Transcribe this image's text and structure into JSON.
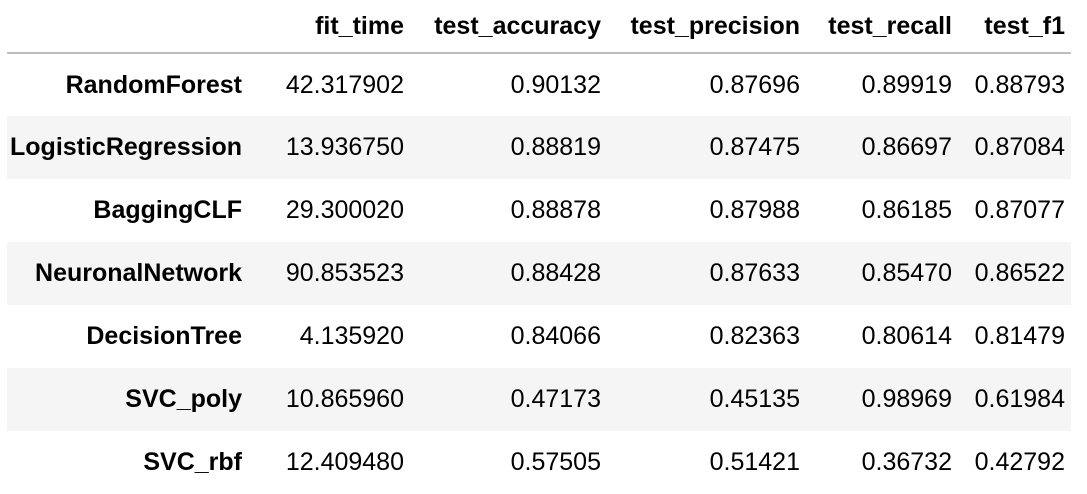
{
  "table": {
    "columns": [
      "",
      "fit_time",
      "test_accuracy",
      "test_precision",
      "test_recall",
      "test_f1"
    ],
    "rows": [
      {
        "index": "RandomForest",
        "values": [
          "42.317902",
          "0.90132",
          "0.87696",
          "0.89919",
          "0.88793"
        ]
      },
      {
        "index": "LogisticRegression",
        "values": [
          "13.936750",
          "0.88819",
          "0.87475",
          "0.86697",
          "0.87084"
        ]
      },
      {
        "index": "BaggingCLF",
        "values": [
          "29.300020",
          "0.88878",
          "0.87988",
          "0.86185",
          "0.87077"
        ]
      },
      {
        "index": "NeuronalNetwork",
        "values": [
          "90.853523",
          "0.88428",
          "0.87633",
          "0.85470",
          "0.86522"
        ]
      },
      {
        "index": "DecisionTree",
        "values": [
          "4.135920",
          "0.84066",
          "0.82363",
          "0.80614",
          "0.81479"
        ]
      },
      {
        "index": "SVC_poly",
        "values": [
          "10.865960",
          "0.47173",
          "0.45135",
          "0.98969",
          "0.61984"
        ]
      },
      {
        "index": "SVC_rbf",
        "values": [
          "12.409480",
          "0.57505",
          "0.51421",
          "0.36732",
          "0.42792"
        ]
      }
    ]
  },
  "colors": {
    "background": "#ffffff",
    "stripe": "#f5f5f5",
    "header_rule": "#bdbdbd",
    "text": "#000000"
  }
}
